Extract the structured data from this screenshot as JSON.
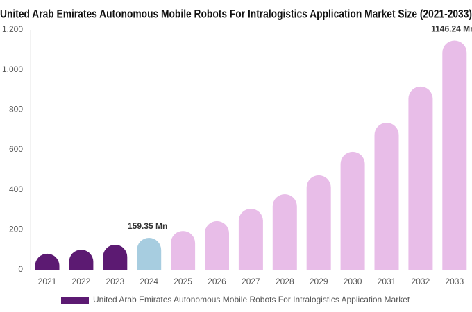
{
  "chart_data": {
    "type": "bar",
    "title": "United Arab Emirates Autonomous Mobile Robots For Intralogistics Application Market Size (2021-2033)",
    "categories": [
      "2021",
      "2022",
      "2023",
      "2024",
      "2025",
      "2026",
      "2027",
      "2028",
      "2029",
      "2030",
      "2031",
      "2032",
      "2033"
    ],
    "series": [
      {
        "name": "United Arab Emirates Autonomous Mobile Robots For Intralogistics Application Market",
        "color": "#5c1a72",
        "values": [
          80,
          100,
          125,
          159.35,
          194,
          243,
          305,
          378,
          472,
          590,
          735,
          916,
          1146.24
        ],
        "value_labels": [
          null,
          null,
          null,
          "159.35 Mn",
          null,
          null,
          null,
          null,
          null,
          null,
          null,
          null,
          "1146.24 Mn"
        ]
      }
    ],
    "colors": [
      "#5c1a72",
      "#5c1a72",
      "#5c1a72",
      "#a7cde0",
      "#e8bde8",
      "#e8bde8",
      "#e8bde8",
      "#e8bde8",
      "#e8bde8",
      "#e8bde8",
      "#e8bde8",
      "#e8bde8",
      "#e8bde8"
    ],
    "ylim": [
      0,
      1200
    ],
    "yticks": [
      0,
      200,
      400,
      600,
      800,
      {
        "value": 1000,
        "label": "1,000"
      },
      {
        "value": 1200,
        "label": "1,200"
      }
    ],
    "grid": false
  }
}
